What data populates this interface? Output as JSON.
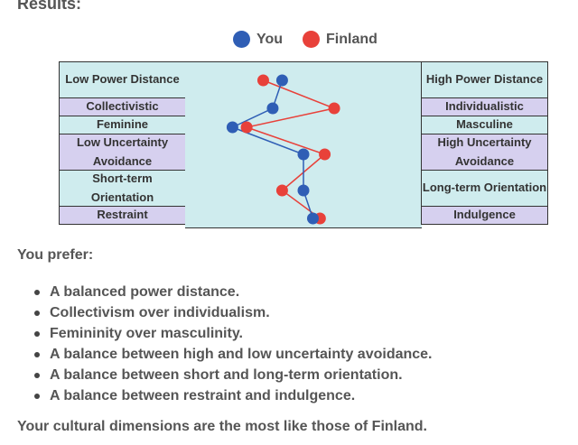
{
  "results_title": "Results:",
  "legend": [
    {
      "label": "You",
      "color": "#2f5eb5"
    },
    {
      "label": "Finland",
      "color": "#e8413a"
    }
  ],
  "colors": {
    "row_teal": "#cfecee",
    "row_lavender": "#d6d0ef",
    "plot_bg": "#cfecee"
  },
  "dimensions": [
    {
      "left": "Low Power Distance",
      "right": "High Power Distance",
      "tone": "teal",
      "lines": 2
    },
    {
      "left": "Collectivistic",
      "right": "Individualistic",
      "tone": "lav",
      "lines": 1
    },
    {
      "left": "Feminine",
      "right": "Masculine",
      "tone": "teal",
      "lines": 1
    },
    {
      "left": "Low Uncertainty Avoidance",
      "right": "High Uncertainty Avoidance",
      "tone": "lav",
      "lines": 2
    },
    {
      "left": "Short-term Orientation",
      "right": "Long-term Orientation",
      "tone": "teal",
      "lines": 2
    },
    {
      "left": "Restraint",
      "right": "Indulgence",
      "tone": "lav",
      "lines": 1
    }
  ],
  "chart_data": {
    "type": "scatter",
    "x_range": [
      0,
      100
    ],
    "categories": [
      "Power Distance",
      "Individualism",
      "Masculinity",
      "Uncertainty Avoidance",
      "Long-term Orientation",
      "Indulgence"
    ],
    "series": [
      {
        "name": "You",
        "color": "#2f5eb5",
        "values": [
          41,
          37,
          20,
          50,
          50,
          54
        ]
      },
      {
        "name": "Finland",
        "color": "#e8413a",
        "values": [
          33,
          63,
          26,
          59,
          41,
          57
        ]
      }
    ]
  },
  "prefer_heading": "You prefer:",
  "preferences": [
    "A balanced power distance.",
    "Collectivism over individualism.",
    "Femininity over masculinity.",
    "A balance between high and low uncertainty avoidance.",
    "A balance between short and long-term orientation.",
    "A balance between restraint and indulgence."
  ],
  "conclusion": "Your cultural dimensions are the most like those of Finland."
}
